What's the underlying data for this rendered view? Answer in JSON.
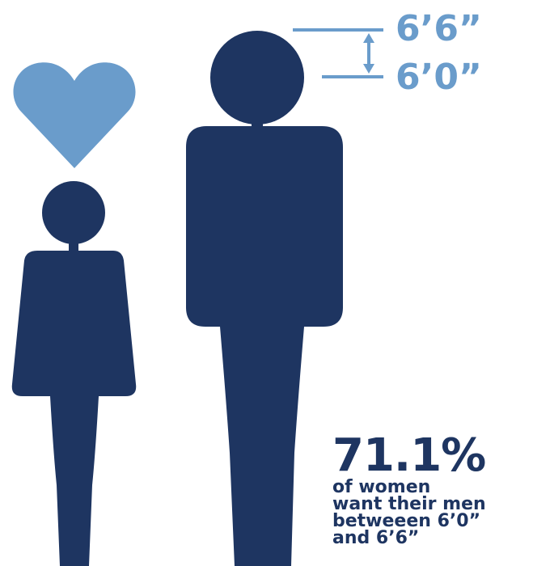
{
  "colors": {
    "figure": "#1e3561",
    "accent": "#6a9ccb",
    "background": "#ffffff"
  },
  "icons": {
    "heart": "heart-icon",
    "woman": "woman-figure-icon",
    "man": "man-figure-icon",
    "range_arrow": "double-arrow-icon"
  },
  "height_range": {
    "upper_label": "6’6”",
    "lower_label": "6’0”"
  },
  "stat": {
    "percent": "71.1%",
    "lines": [
      "of women",
      "want their men",
      "betweeen 6’0”",
      "and 6’6”"
    ]
  }
}
